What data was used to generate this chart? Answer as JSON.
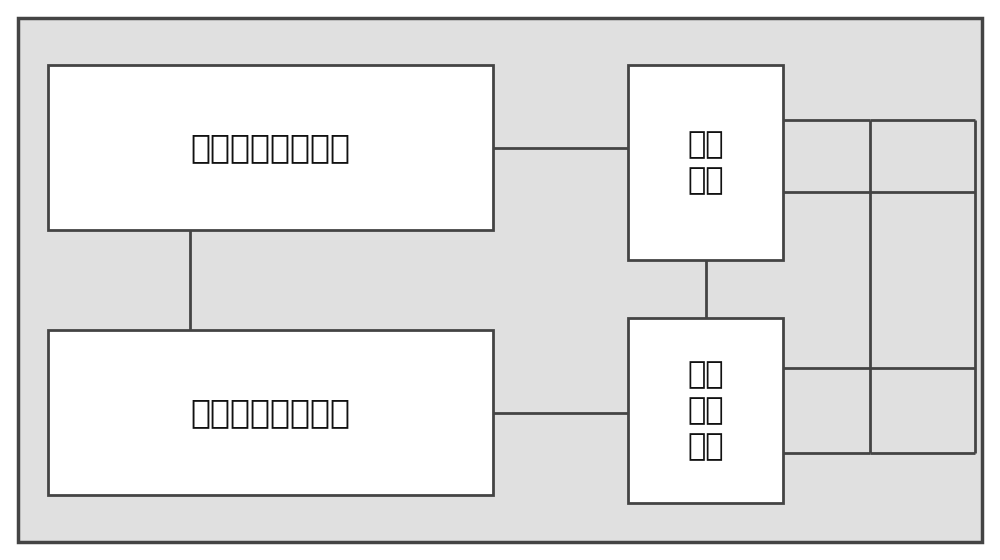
{
  "bg_color": "#ffffff",
  "box_bg": "#ffffff",
  "box_border": "#444444",
  "line_color": "#444444",
  "outer_bg": "#e0e0e0",
  "box1_label": "数字信号微处理器",
  "box2_label": "交、直流电源系统",
  "box3_label": "信号\n采集",
  "box4_label": "电力\n电子\n逆变",
  "font_size_lr": 24,
  "font_size_sm": 22,
  "figsize": [
    10.0,
    5.6
  ],
  "dpi": 100
}
